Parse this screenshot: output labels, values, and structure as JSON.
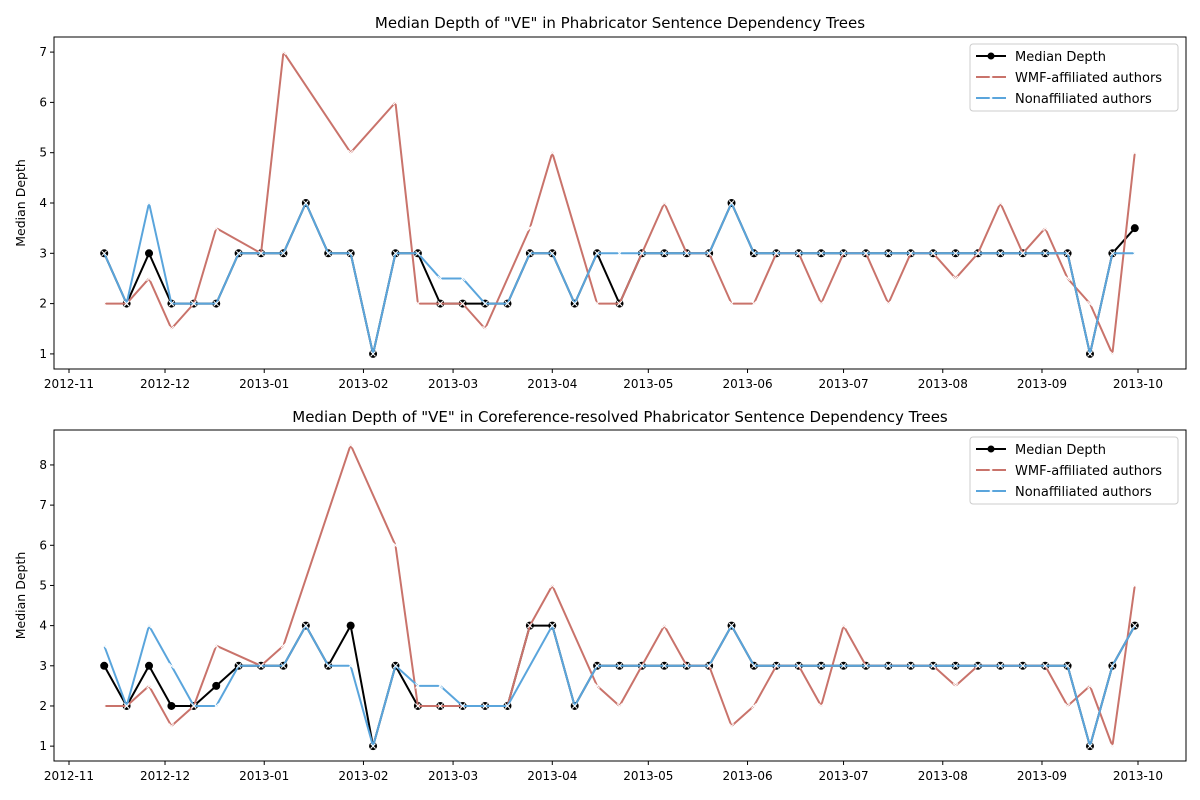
{
  "chart_data": [
    {
      "type": "line",
      "title": "Median Depth of \"VE\" in Phabricator Sentence Dependency Trees",
      "xlabel": "",
      "ylabel": "Median Depth",
      "ylim": [
        0.7,
        7.3
      ],
      "yticks": [
        1,
        2,
        3,
        4,
        5,
        6,
        7
      ],
      "xticks": [
        "2012-11",
        "2012-12",
        "2013-01",
        "2013-02",
        "2013-03",
        "2013-04",
        "2013-05",
        "2013-06",
        "2013-07",
        "2013-08",
        "2013-09",
        "2013-10"
      ],
      "grid": false,
      "legend": "top-right",
      "x": [
        "2012-11-12",
        "2012-11-19",
        "2012-11-26",
        "2012-12-03",
        "2012-12-10",
        "2012-12-17",
        "2012-12-24",
        "2012-12-31",
        "2013-01-07",
        "2013-01-14",
        "2013-01-21",
        "2013-01-28",
        "2013-02-04",
        "2013-02-11",
        "2013-02-18",
        "2013-02-25",
        "2013-03-04",
        "2013-03-11",
        "2013-03-18",
        "2013-03-25",
        "2013-04-01",
        "2013-04-08",
        "2013-04-15",
        "2013-04-22",
        "2013-04-29",
        "2013-05-06",
        "2013-05-13",
        "2013-05-20",
        "2013-05-27",
        "2013-06-03",
        "2013-06-10",
        "2013-06-17",
        "2013-06-24",
        "2013-07-01",
        "2013-07-08",
        "2013-07-15",
        "2013-07-22",
        "2013-07-29",
        "2013-08-05",
        "2013-08-12",
        "2013-08-19",
        "2013-08-26",
        "2013-09-02",
        "2013-09-09",
        "2013-09-16",
        "2013-09-23",
        "2013-09-30"
      ],
      "series": [
        {
          "name": "Median Depth",
          "color": "#000000",
          "marker": "circle",
          "values": [
            3,
            2,
            3,
            2,
            2,
            2,
            3,
            3,
            3,
            4,
            3,
            3,
            1,
            3,
            3,
            2,
            2,
            2,
            2,
            3,
            3,
            2,
            3,
            2,
            3,
            3,
            3,
            3,
            4,
            3,
            3,
            3,
            3,
            3,
            3,
            3,
            3,
            3,
            3,
            3,
            3,
            3,
            3,
            3,
            1,
            3,
            3.5
          ]
        },
        {
          "name": "WMF-affiliated authors",
          "color": "#c9736b",
          "marker": "x",
          "values": [
            2,
            2,
            2.5,
            1.5,
            2,
            3.5,
            null,
            3,
            7,
            null,
            null,
            5,
            null,
            6,
            2,
            2,
            2,
            1.5,
            null,
            3.5,
            5,
            null,
            2,
            2,
            3,
            4,
            3,
            3,
            2,
            2,
            3,
            3,
            2,
            3,
            3,
            2,
            3,
            3,
            2.5,
            3,
            4,
            3,
            3.5,
            2.5,
            2,
            1,
            5
          ]
        },
        {
          "name": "Nonaffiliated authors",
          "color": "#5aa5dc",
          "marker": "x",
          "values": [
            3,
            2,
            4,
            2,
            2,
            2,
            3,
            3,
            3,
            4,
            3,
            3,
            1,
            3,
            3,
            2.5,
            2.5,
            2,
            2,
            3,
            3,
            2,
            3,
            3,
            3,
            3,
            3,
            3,
            4,
            3,
            3,
            3,
            3,
            3,
            3,
            3,
            3,
            3,
            3,
            3,
            3,
            3,
            3,
            3,
            1,
            3,
            3
          ]
        }
      ]
    },
    {
      "type": "line",
      "title": "Median Depth of \"VE\" in Coreference-resolved Phabricator Sentence Dependency Trees",
      "xlabel": "",
      "ylabel": "Median Depth",
      "ylim": [
        0.63,
        8.87
      ],
      "yticks": [
        1,
        2,
        3,
        4,
        5,
        6,
        7,
        8
      ],
      "xticks": [
        "2012-11",
        "2012-12",
        "2013-01",
        "2013-02",
        "2013-03",
        "2013-04",
        "2013-05",
        "2013-06",
        "2013-07",
        "2013-08",
        "2013-09",
        "2013-10"
      ],
      "grid": false,
      "legend": "top-right",
      "x": [
        "2012-11-12",
        "2012-11-19",
        "2012-11-26",
        "2012-12-03",
        "2012-12-10",
        "2012-12-17",
        "2012-12-24",
        "2012-12-31",
        "2013-01-07",
        "2013-01-14",
        "2013-01-21",
        "2013-01-28",
        "2013-02-04",
        "2013-02-11",
        "2013-02-18",
        "2013-02-25",
        "2013-03-04",
        "2013-03-11",
        "2013-03-18",
        "2013-03-25",
        "2013-04-01",
        "2013-04-08",
        "2013-04-15",
        "2013-04-22",
        "2013-04-29",
        "2013-05-06",
        "2013-05-13",
        "2013-05-20",
        "2013-05-27",
        "2013-06-03",
        "2013-06-10",
        "2013-06-17",
        "2013-06-24",
        "2013-07-01",
        "2013-07-08",
        "2013-07-15",
        "2013-07-22",
        "2013-07-29",
        "2013-08-05",
        "2013-08-12",
        "2013-08-19",
        "2013-08-26",
        "2013-09-02",
        "2013-09-09",
        "2013-09-16",
        "2013-09-23",
        "2013-09-30"
      ],
      "series": [
        {
          "name": "Median Depth",
          "color": "#000000",
          "marker": "circle",
          "values": [
            3,
            2,
            3,
            2,
            2,
            2.5,
            3,
            3,
            3,
            4,
            3,
            4,
            1,
            3,
            2,
            2,
            2,
            2,
            2,
            4,
            4,
            2,
            3,
            3,
            3,
            3,
            3,
            3,
            4,
            3,
            3,
            3,
            3,
            3,
            3,
            3,
            3,
            3,
            3,
            3,
            3,
            3,
            3,
            3,
            1,
            3,
            4
          ]
        },
        {
          "name": "WMF-affiliated authors",
          "color": "#c9736b",
          "marker": "x",
          "values": [
            2,
            2,
            2.5,
            1.5,
            2,
            3.5,
            null,
            3,
            3.5,
            null,
            null,
            8.5,
            null,
            6,
            2,
            2,
            2,
            2,
            2,
            4,
            5,
            null,
            2.5,
            2,
            3,
            4,
            3,
            3,
            1.5,
            2,
            3,
            3,
            2,
            4,
            3,
            3,
            3,
            3,
            2.5,
            3,
            3,
            3,
            3,
            2,
            2.5,
            1,
            5
          ]
        },
        {
          "name": "Nonaffiliated authors",
          "color": "#5aa5dc",
          "marker": "x",
          "values": [
            3.5,
            2,
            4,
            3,
            2,
            2,
            3,
            3,
            3,
            4,
            3,
            3,
            1,
            3,
            2.5,
            2.5,
            2,
            2,
            2,
            null,
            4,
            2,
            3,
            3,
            3,
            3,
            3,
            3,
            4,
            3,
            3,
            3,
            3,
            3,
            3,
            3,
            3,
            3,
            3,
            3,
            3,
            3,
            3,
            3,
            1,
            3,
            4
          ]
        }
      ]
    }
  ]
}
